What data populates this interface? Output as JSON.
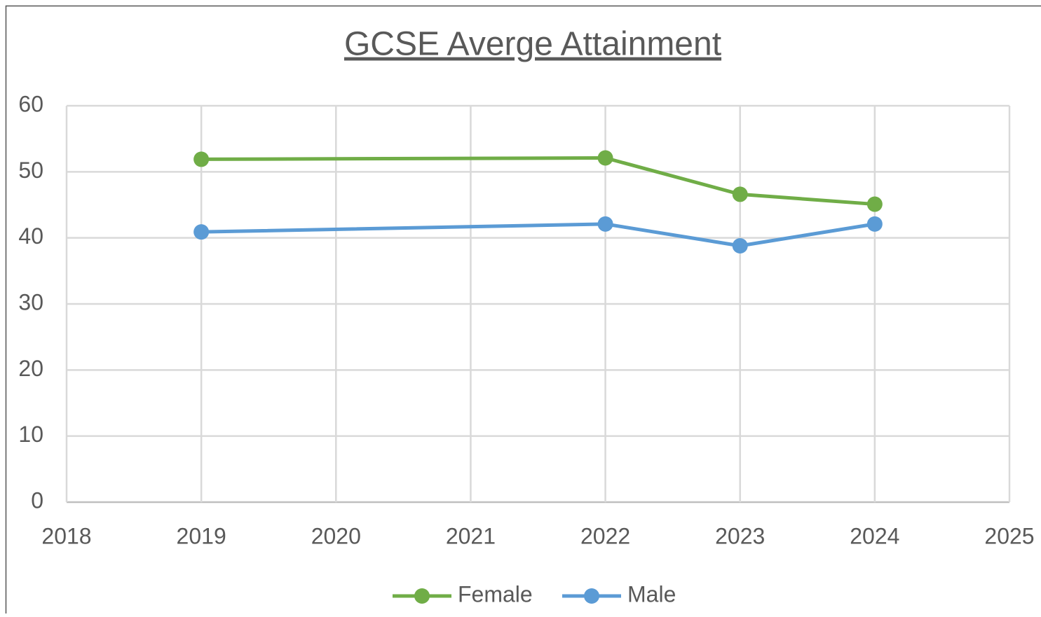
{
  "chart_data": {
    "type": "line",
    "title": "GCSE Averge Attainment",
    "x": [
      2019,
      2022,
      2023,
      2024
    ],
    "series": [
      {
        "name": "Female",
        "color": "#70ad47",
        "values": [
          51.9,
          52.1,
          46.6,
          45.1
        ]
      },
      {
        "name": "Male",
        "color": "#5b9bd5",
        "values": [
          40.9,
          42.1,
          38.8,
          42.1
        ]
      }
    ],
    "xlim": [
      2018,
      2025
    ],
    "xticks": [
      2018,
      2019,
      2020,
      2021,
      2022,
      2023,
      2024,
      2025
    ],
    "ylim": [
      0,
      60
    ],
    "yticks": [
      0,
      10,
      20,
      30,
      40,
      50,
      60
    ],
    "grid": true,
    "legend": "bottom"
  }
}
